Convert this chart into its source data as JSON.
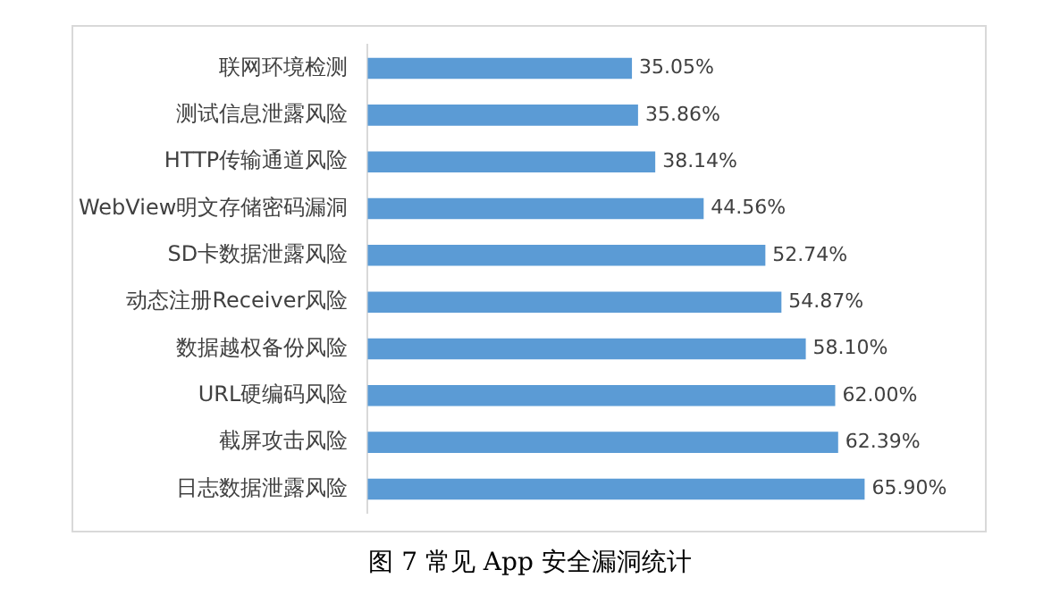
{
  "chart_data": {
    "type": "bar",
    "orientation": "horizontal",
    "tick_labels": "y",
    "categories": [
      "联网环境检测",
      "测试信息泄露风险",
      "HTTP传输通道风险",
      "WebView明文存储密码漏洞",
      "SD卡数据泄露风险",
      "动态注册Receiver风险",
      "数据越权备份风险",
      "URL硬编码风险",
      "截屏攻击风险",
      "日志数据泄露风险"
    ],
    "values": [
      35.05,
      35.86,
      38.14,
      44.56,
      52.74,
      54.87,
      58.1,
      62.0,
      62.39,
      65.9
    ],
    "value_labels": [
      "35.05%",
      "35.86%",
      "38.14%",
      "44.56%",
      "52.74%",
      "54.87%",
      "58.10%",
      "62.00%",
      "62.39%",
      "65.90%"
    ],
    "color": "#5b9bd5",
    "grid": false,
    "legend": false,
    "annotations": [
      "图 7  常见 App 安全漏洞统计"
    ]
  }
}
